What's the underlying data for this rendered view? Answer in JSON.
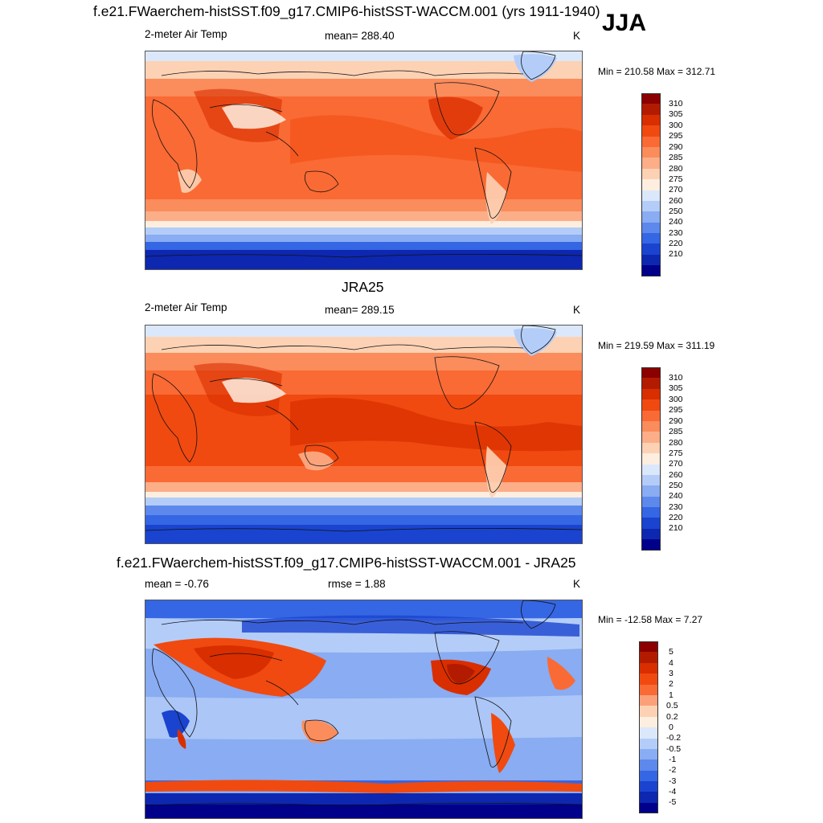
{
  "season": "JJA",
  "panels": [
    {
      "title": "f.e21.FWaerchem-histSST.f09_g17.CMIP6-histSST-WACCM.001 (yrs 1911-1940)",
      "left_label": "2-meter Air Temp",
      "center_label": "mean= 288.40",
      "units": "K",
      "minmax": "Min = 210.58 Max = 312.71",
      "colorbar_labels": [
        "310",
        "305",
        "300",
        "295",
        "290",
        "285",
        "280",
        "275",
        "270",
        "260",
        "250",
        "240",
        "230",
        "220",
        "210"
      ]
    },
    {
      "title": "JRA25",
      "left_label": "2-meter Air Temp",
      "center_label": "mean= 289.15",
      "units": "K",
      "minmax": "Min = 219.59 Max = 311.19",
      "colorbar_labels": [
        "310",
        "305",
        "300",
        "295",
        "290",
        "285",
        "280",
        "275",
        "270",
        "260",
        "250",
        "240",
        "230",
        "220",
        "210"
      ]
    },
    {
      "title": "f.e21.FWaerchem-histSST.f09_g17.CMIP6-histSST-WACCM.001 - JRA25",
      "left_label": "mean =  -0.76",
      "center_label": "rmse =   1.88",
      "units": "K",
      "minmax": "Min = -12.58 Max =   7.27",
      "colorbar_labels": [
        "5",
        "4",
        "3",
        "2",
        "1",
        "0.5",
        "0.2",
        "0",
        "-0.2",
        "-0.5",
        "-1",
        "-2",
        "-3",
        "-4",
        "-5"
      ]
    }
  ],
  "colors": {
    "temp_scale": [
      "#8b0000",
      "#b31b00",
      "#d92e00",
      "#f04a10",
      "#fa6a34",
      "#fb8c5c",
      "#fcae88",
      "#fdd2b4",
      "#fdeee0",
      "#dbe8fb",
      "#b4cdf8",
      "#89acf2",
      "#5d88ec",
      "#3566e3",
      "#1a44cf",
      "#0d27b0",
      "#00008a"
    ],
    "diff_scale": [
      "#8b0000",
      "#b31b00",
      "#d92e00",
      "#f04a10",
      "#fa6a34",
      "#fca07a",
      "#fdd2b4",
      "#fdeee0",
      "#dbe8fb",
      "#b4cdf8",
      "#89acf2",
      "#5d88ec",
      "#3566e3",
      "#1a44cf",
      "#0d27b0",
      "#00008a"
    ]
  }
}
